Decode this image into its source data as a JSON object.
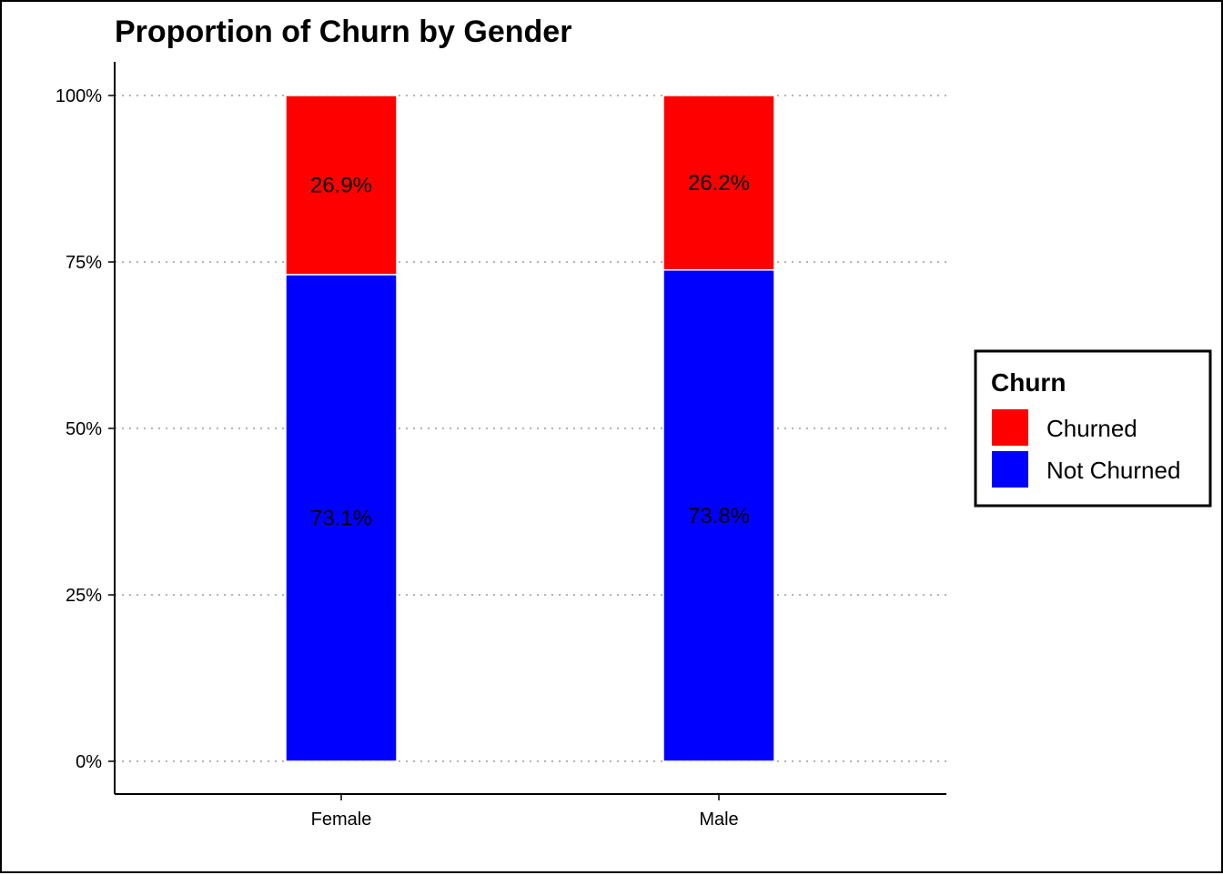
{
  "chart_data": {
    "type": "bar",
    "stacked": true,
    "title": "Proportion of Churn by Gender",
    "xlabel": "",
    "ylabel": "",
    "categories": [
      "Female",
      "Male"
    ],
    "series": [
      {
        "name": "Not Churned",
        "color": "#0000ff",
        "values": [
          73.1,
          73.8
        ],
        "labels": [
          "73.1%",
          "73.8%"
        ]
      },
      {
        "name": "Churned",
        "color": "#ff0000",
        "values": [
          26.9,
          26.2
        ],
        "labels": [
          "26.9%",
          "26.2%"
        ]
      }
    ],
    "ylim": [
      0,
      100
    ],
    "yticks": [
      0,
      25,
      50,
      75,
      100
    ],
    "ytick_labels": [
      "0%",
      "25%",
      "50%",
      "75%",
      "100%"
    ],
    "grid": "horizontal-dotted",
    "legend": {
      "title": "Churn",
      "position": "right",
      "entries": [
        {
          "name": "Churned",
          "color": "#ff0000"
        },
        {
          "name": "Not Churned",
          "color": "#0000ff"
        }
      ]
    }
  }
}
